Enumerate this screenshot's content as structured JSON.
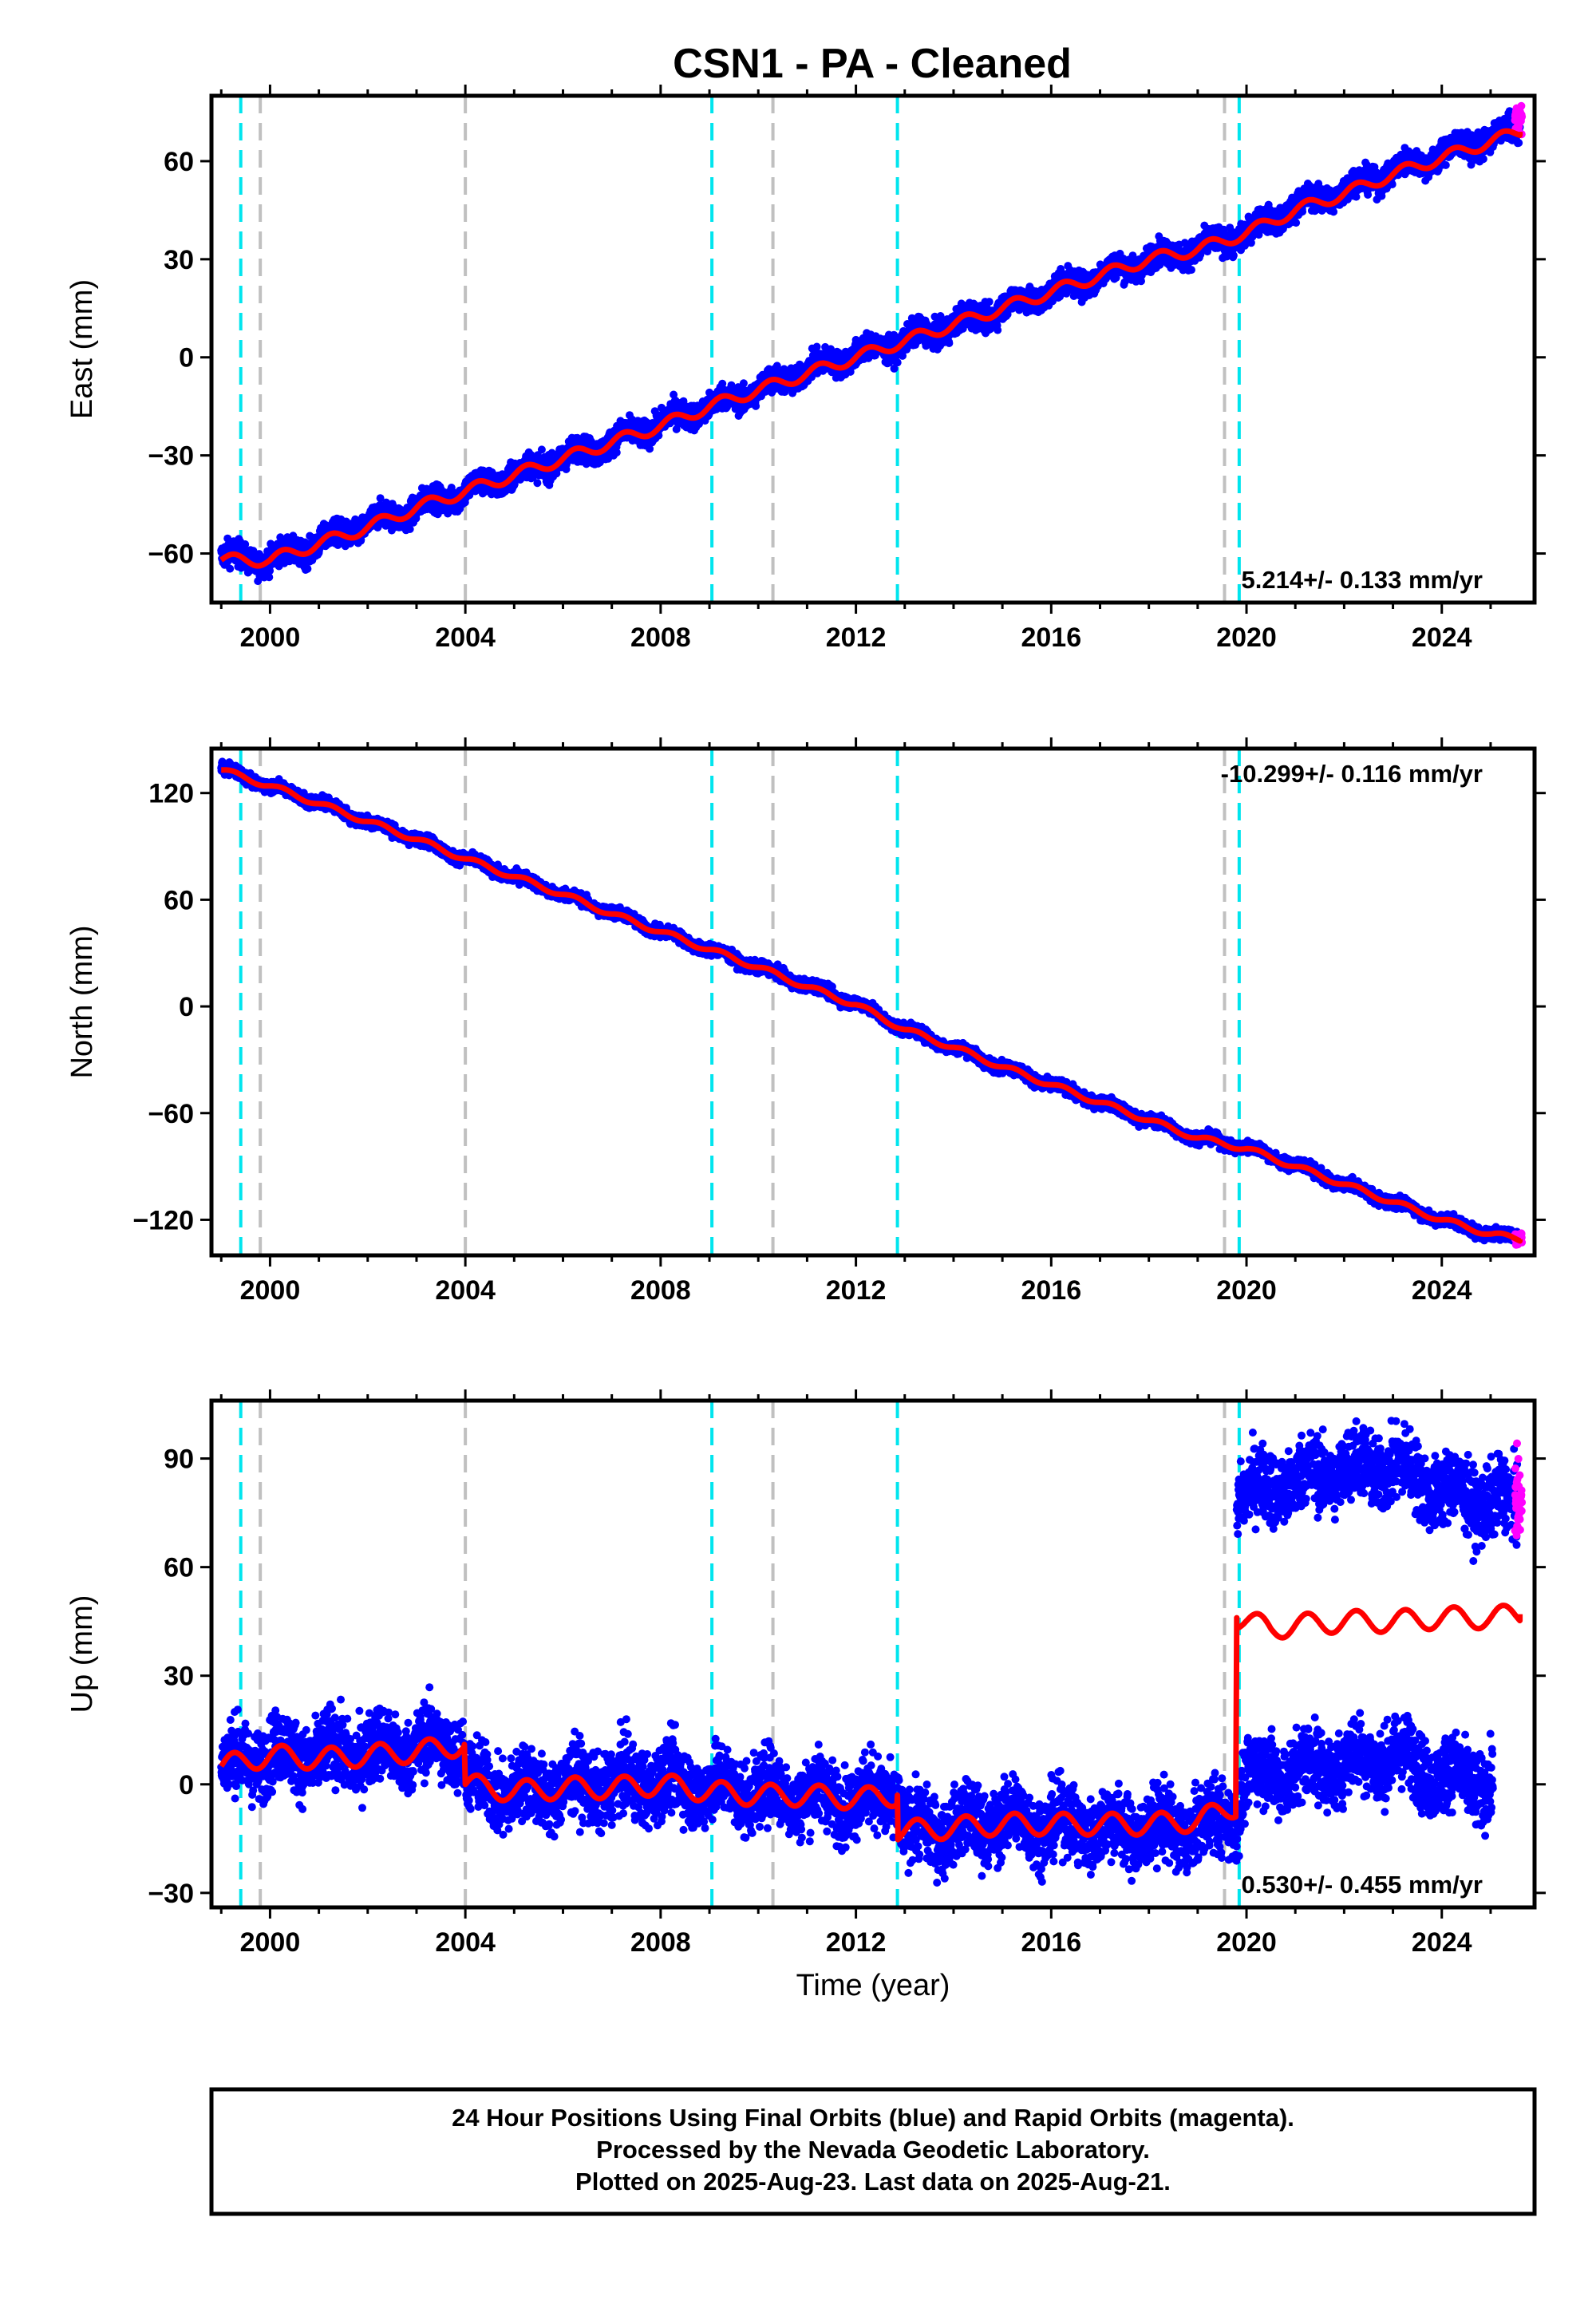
{
  "title": "CSN1  - PA - Cleaned",
  "colors": {
    "final_orbits": "#0000ff",
    "rapid_orbits": "#ff00ff",
    "model": "#ff0000",
    "equipment_change": "#00e5ee",
    "earthquake_offset": "#c0c0c0",
    "frame": "#000000"
  },
  "footer": {
    "line1": "24 Hour Positions Using Final Orbits (blue) and Rapid Orbits (magenta).",
    "line2": "Processed by the Nevada Geodetic Laboratory.",
    "line3": "Plotted on 2025-Aug-23. Last data on 2025-Aug-21."
  },
  "chart_data": [
    {
      "type": "scatter",
      "component": "east",
      "ylabel": "East (mm)",
      "xlabel": "",
      "xlim": [
        1998.8,
        2025.9
      ],
      "ylim": [
        -75,
        80
      ],
      "xticks": [
        2000,
        2004,
        2008,
        2012,
        2016,
        2020,
        2024
      ],
      "yticks": [
        -60,
        -30,
        0,
        30,
        60
      ],
      "rate_text": "5.214+/- 0.133 mm/yr",
      "rate_position": "bottom-right",
      "series_points": [
        [
          1999.0,
          -61
        ],
        [
          2000.0,
          -62
        ],
        [
          2001.0,
          -57
        ],
        [
          2002.0,
          -51
        ],
        [
          2003.0,
          -46
        ],
        [
          2004.0,
          -41
        ],
        [
          2005.0,
          -36
        ],
        [
          2006.0,
          -31
        ],
        [
          2007.0,
          -26
        ],
        [
          2008.0,
          -20
        ],
        [
          2009.0,
          -15
        ],
        [
          2010.0,
          -10
        ],
        [
          2011.0,
          -4
        ],
        [
          2012.0,
          1
        ],
        [
          2013.0,
          5
        ],
        [
          2014.0,
          10
        ],
        [
          2015.0,
          15
        ],
        [
          2016.0,
          20
        ],
        [
          2017.0,
          25
        ],
        [
          2018.0,
          30
        ],
        [
          2019.0,
          33
        ],
        [
          2020.0,
          38
        ],
        [
          2021.0,
          46
        ],
        [
          2022.0,
          51
        ],
        [
          2023.0,
          57
        ],
        [
          2024.0,
          62
        ],
        [
          2025.0,
          67
        ],
        [
          2025.6,
          70
        ]
      ],
      "model_points": [
        [
          1999.0,
          -62
        ],
        [
          2000.0,
          -62
        ],
        [
          2001.0,
          -57
        ],
        [
          2002.0,
          -52
        ],
        [
          2003.0,
          -46
        ],
        [
          2004.0,
          -41
        ],
        [
          2005.0,
          -36
        ],
        [
          2006.0,
          -31
        ],
        [
          2007.0,
          -26
        ],
        [
          2008.0,
          -21
        ],
        [
          2009.0,
          -15
        ],
        [
          2010.0,
          -10
        ],
        [
          2011.0,
          -5
        ],
        [
          2012.0,
          0
        ],
        [
          2013.0,
          5
        ],
        [
          2014.0,
          10
        ],
        [
          2015.0,
          15
        ],
        [
          2016.0,
          20
        ],
        [
          2017.0,
          25
        ],
        [
          2018.0,
          30
        ],
        [
          2019.0,
          33
        ],
        [
          2020.0,
          38
        ],
        [
          2021.0,
          45
        ],
        [
          2022.0,
          50
        ],
        [
          2023.0,
          56
        ],
        [
          2024.0,
          61
        ],
        [
          2025.0,
          66
        ],
        [
          2025.6,
          69
        ]
      ],
      "scatter_half_width": 3.5,
      "seasonal_amplitude": 1.8
    },
    {
      "type": "scatter",
      "component": "north",
      "ylabel": "North (mm)",
      "xlabel": "",
      "xlim": [
        1998.8,
        2025.9
      ],
      "ylim": [
        -140,
        145
      ],
      "xticks": [
        2000,
        2004,
        2008,
        2012,
        2016,
        2020,
        2024
      ],
      "yticks": [
        -120,
        -60,
        0,
        60,
        120
      ],
      "rate_text": "-10.299+/- 0.116 mm/yr",
      "rate_position": "top-right",
      "series_points": [
        [
          1999.0,
          134
        ],
        [
          2000.0,
          124
        ],
        [
          2001.0,
          115
        ],
        [
          2002.0,
          104
        ],
        [
          2003.0,
          94
        ],
        [
          2004.0,
          83
        ],
        [
          2005.0,
          73
        ],
        [
          2006.0,
          63
        ],
        [
          2007.0,
          53
        ],
        [
          2008.0,
          42
        ],
        [
          2009.0,
          32
        ],
        [
          2010.0,
          22
        ],
        [
          2011.0,
          12
        ],
        [
          2012.0,
          2
        ],
        [
          2013.0,
          -13
        ],
        [
          2014.0,
          -23
        ],
        [
          2015.0,
          -34
        ],
        [
          2016.0,
          -44
        ],
        [
          2017.0,
          -54
        ],
        [
          2018.0,
          -64
        ],
        [
          2019.0,
          -74
        ],
        [
          2020.0,
          -79
        ],
        [
          2021.0,
          -89
        ],
        [
          2022.0,
          -100
        ],
        [
          2023.0,
          -110
        ],
        [
          2024.0,
          -120
        ],
        [
          2025.0,
          -128
        ],
        [
          2025.6,
          -130
        ]
      ],
      "model_points": [
        [
          1999.0,
          133
        ],
        [
          2000.0,
          124
        ],
        [
          2001.0,
          114
        ],
        [
          2002.0,
          104
        ],
        [
          2003.0,
          94
        ],
        [
          2004.0,
          83
        ],
        [
          2005.0,
          73
        ],
        [
          2006.0,
          63
        ],
        [
          2007.0,
          52
        ],
        [
          2008.0,
          42
        ],
        [
          2009.0,
          32
        ],
        [
          2010.0,
          22
        ],
        [
          2011.0,
          11
        ],
        [
          2012.0,
          1
        ],
        [
          2013.0,
          -13
        ],
        [
          2014.0,
          -23
        ],
        [
          2015.0,
          -34
        ],
        [
          2016.0,
          -44
        ],
        [
          2017.0,
          -54
        ],
        [
          2018.0,
          -64
        ],
        [
          2019.0,
          -74
        ],
        [
          2020.0,
          -80
        ],
        [
          2021.0,
          -90
        ],
        [
          2022.0,
          -100
        ],
        [
          2023.0,
          -110
        ],
        [
          2024.0,
          -120
        ],
        [
          2025.0,
          -128
        ],
        [
          2025.6,
          -131
        ]
      ],
      "scatter_half_width": 3,
      "seasonal_amplitude": 1.5
    },
    {
      "type": "scatter",
      "component": "up",
      "ylabel": "Up (mm)",
      "xlabel": "Time (year)",
      "xlim": [
        1998.8,
        2025.9
      ],
      "ylim": [
        -34,
        106
      ],
      "xticks": [
        2000,
        2004,
        2008,
        2012,
        2016,
        2020,
        2024
      ],
      "yticks": [
        -30,
        0,
        30,
        60,
        90
      ],
      "rate_text": "0.530+/- 0.455 mm/yr",
      "rate_position": "bottom-right",
      "series_points": [
        [
          1999.0,
          5
        ],
        [
          2000.0,
          8
        ],
        [
          2001.0,
          8
        ],
        [
          2002.0,
          9
        ],
        [
          2003.0,
          10
        ],
        [
          2003.9,
          11
        ],
        [
          2004.1,
          0
        ],
        [
          2005.0,
          -2
        ],
        [
          2006.0,
          -1
        ],
        [
          2007.0,
          0
        ],
        [
          2008.0,
          1
        ],
        [
          2009.0,
          -1
        ],
        [
          2010.0,
          -2
        ],
        [
          2011.0,
          -3
        ],
        [
          2012.0,
          -4
        ],
        [
          2012.85,
          -3
        ],
        [
          2013.0,
          -13
        ],
        [
          2014.0,
          -12
        ],
        [
          2015.0,
          -10
        ],
        [
          2016.0,
          -11
        ],
        [
          2017.0,
          -12
        ],
        [
          2018.0,
          -13
        ],
        [
          2019.0,
          -12
        ],
        [
          2019.8,
          -8
        ],
        [
          2020.0,
          2
        ],
        [
          2021.0,
          4
        ],
        [
          2022.0,
          6
        ],
        [
          2023.0,
          8
        ],
        [
          2024.0,
          2
        ],
        [
          2025.0,
          0
        ]
      ],
      "upper_series_points": [
        [
          2019.8,
          80
        ],
        [
          2020.5,
          82
        ],
        [
          2021.0,
          84
        ],
        [
          2022.0,
          87
        ],
        [
          2023.0,
          88
        ],
        [
          2024.0,
          81
        ],
        [
          2025.0,
          78
        ],
        [
          2025.6,
          78
        ]
      ],
      "model_points": [
        [
          1999.0,
          5
        ],
        [
          2000.0,
          8
        ],
        [
          2001.0,
          7
        ],
        [
          2002.0,
          8
        ],
        [
          2003.0,
          9
        ],
        [
          2003.98,
          11
        ],
        [
          2004.0,
          0
        ],
        [
          2005.0,
          -2
        ],
        [
          2006.0,
          -1
        ],
        [
          2007.0,
          -1
        ],
        [
          2008.0,
          0
        ],
        [
          2009.0,
          -2
        ],
        [
          2010.0,
          -3
        ],
        [
          2011.0,
          -3
        ],
        [
          2012.0,
          -4
        ],
        [
          2012.85,
          -3
        ],
        [
          2012.86,
          -13
        ],
        [
          2014.0,
          -12
        ],
        [
          2015.0,
          -11
        ],
        [
          2016.0,
          -11
        ],
        [
          2017.0,
          -11
        ],
        [
          2018.0,
          -11
        ],
        [
          2019.0,
          -10
        ],
        [
          2019.78,
          -6
        ],
        [
          2019.8,
          46
        ],
        [
          2020.5,
          43
        ],
        [
          2021.0,
          44
        ],
        [
          2022.0,
          45
        ],
        [
          2023.0,
          45
        ],
        [
          2024.0,
          46
        ],
        [
          2025.0,
          46
        ],
        [
          2025.6,
          47
        ]
      ],
      "scatter_half_width": 9,
      "seasonal_amplitude": 3
    }
  ],
  "event_lines": {
    "equipment_change": [
      1999.4,
      2009.05,
      2012.85,
      2019.85
    ],
    "earthquake_offset": [
      1999.8,
      2004.0,
      2010.3,
      2019.55
    ]
  }
}
